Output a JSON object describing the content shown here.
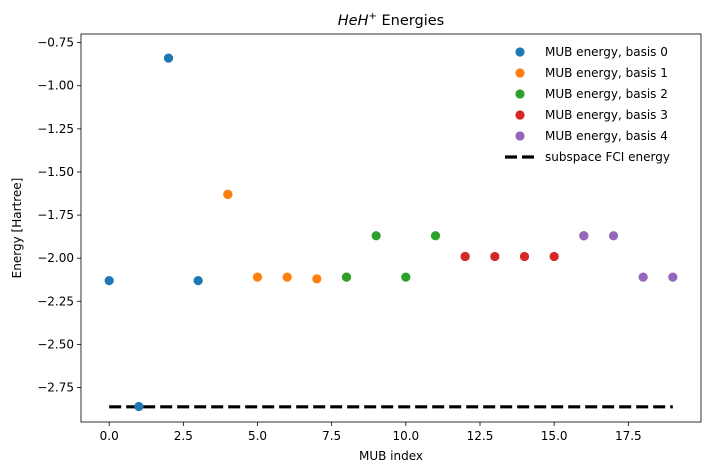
{
  "chart_data": {
    "type": "scatter",
    "title": "HeH⁺ Energies",
    "title_italic_part": "HeH",
    "title_sup": "+",
    "title_rest": " Energies",
    "xlabel": "MUB index",
    "ylabel": "Energy [Hartree]",
    "xlim": [
      -0.95,
      19.95
    ],
    "ylim": [
      -2.95,
      -0.7
    ],
    "x_ticks": [
      0.0,
      2.5,
      5.0,
      7.5,
      10.0,
      12.5,
      15.0,
      17.5
    ],
    "x_tick_labels": [
      "0.0",
      "2.5",
      "5.0",
      "7.5",
      "10.0",
      "12.5",
      "15.0",
      "17.5"
    ],
    "y_ticks": [
      -0.75,
      -1.0,
      -1.25,
      -1.5,
      -1.75,
      -2.0,
      -2.25,
      -2.5,
      -2.75
    ],
    "y_tick_labels": [
      "−0.75",
      "−1.00",
      "−1.25",
      "−1.50",
      "−1.75",
      "−2.00",
      "−2.25",
      "−2.50",
      "−2.75"
    ],
    "grid": false,
    "legend_position": "top-right",
    "series": [
      {
        "name": "MUB energy, basis 0",
        "color": "#1f77b4",
        "marker": "circle",
        "x": [
          0,
          1,
          2,
          3,
          4
        ],
        "y": [
          -2.13,
          -2.86,
          -0.84,
          -2.13,
          -1.63
        ]
      },
      {
        "name": "MUB energy, basis 1",
        "color": "#ff7f0e",
        "marker": "circle",
        "x": [
          4,
          5,
          6,
          7,
          8
        ],
        "y": [
          -1.63,
          -2.11,
          -2.11,
          -2.12,
          -2.11
        ]
      },
      {
        "name": "MUB energy, basis 2",
        "color": "#2ca02c",
        "marker": "circle",
        "x": [
          8,
          9,
          10,
          11,
          12
        ],
        "y": [
          -2.11,
          -1.87,
          -2.11,
          -1.87,
          -1.99
        ]
      },
      {
        "name": "MUB energy, basis 3",
        "color": "#d62728",
        "marker": "circle",
        "x": [
          12,
          13,
          14,
          15,
          16
        ],
        "y": [
          -1.99,
          -1.99,
          -1.99,
          -1.99,
          -1.87
        ]
      },
      {
        "name": "MUB energy, basis 4",
        "color": "#9467bd",
        "marker": "circle",
        "x": [
          16,
          17,
          18,
          19
        ],
        "y": [
          -1.87,
          -1.87,
          -2.11,
          -2.11
        ]
      },
      {
        "name": "subspace FCI energy",
        "color": "#000000",
        "marker": "dashed-line",
        "x": [
          0,
          19
        ],
        "y": [
          -2.862,
          -2.862
        ]
      }
    ]
  }
}
